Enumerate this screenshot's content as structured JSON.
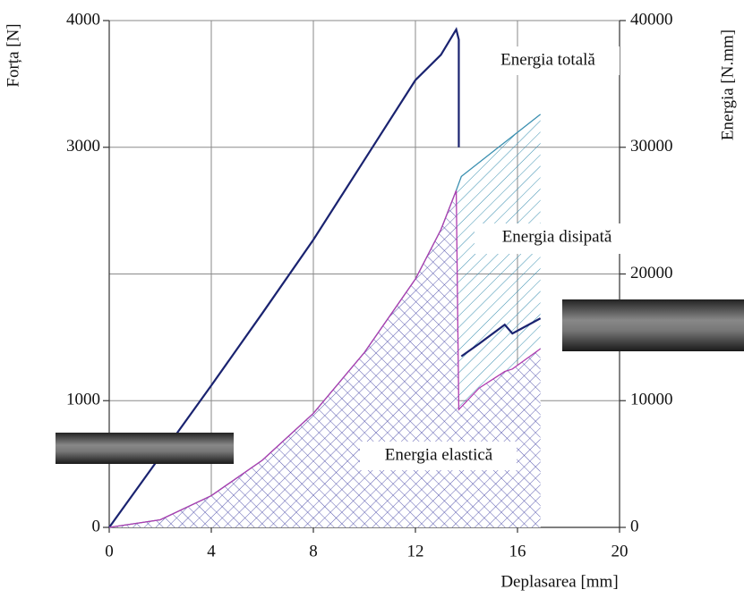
{
  "chart_data": {
    "type": "line",
    "y_label": "Forța [N]",
    "y2_label": "Energia [N.mm]",
    "x_label": "Deplasarea [mm]",
    "xlim": [
      0,
      20
    ],
    "xticks": [
      0,
      4,
      8,
      12,
      16,
      20
    ],
    "ylim": [
      0,
      4000
    ],
    "yticks": [
      0,
      1000,
      3000,
      4000
    ],
    "y2lim": [
      0,
      40000
    ],
    "y2ticks": [
      0,
      10000,
      20000,
      30000,
      40000
    ],
    "grid": true,
    "series": [
      {
        "color": "#1a2370",
        "x": [
          0,
          2,
          4,
          6,
          8,
          10,
          12,
          13,
          13.6,
          13.7,
          13.7,
          13.75,
          13.8,
          14.5,
          15.5,
          15.8,
          16.9
        ],
        "values": [
          0,
          560,
          1120,
          1690,
          2270,
          2900,
          3530,
          3730,
          3930,
          3850,
          3000,
          null,
          1350,
          1450,
          1600,
          1530,
          1650
        ]
      },
      {
        "name": "Energia totală",
        "color": "#3a8fb0",
        "axis": "y2",
        "x": [
          0,
          2,
          4,
          6,
          8,
          10,
          12,
          13,
          13.6,
          13.8,
          16.9
        ],
        "values": [
          0,
          600,
          2500,
          5300,
          9000,
          13800,
          19600,
          23500,
          26600,
          27700,
          32600
        ]
      },
      {
        "name": "Energia elastică",
        "color": "#b03cb0",
        "axis": "y2",
        "x": [
          0,
          2,
          4,
          6,
          8,
          10,
          12,
          13,
          13.6,
          13.7,
          14.5,
          15.5,
          15.8,
          16.9
        ],
        "values": [
          0,
          600,
          2500,
          5300,
          9000,
          13800,
          19600,
          23500,
          26600,
          9300,
          11000,
          12300,
          12500,
          14100
        ]
      }
    ],
    "annotations": [
      "Energia disipată"
    ]
  }
}
